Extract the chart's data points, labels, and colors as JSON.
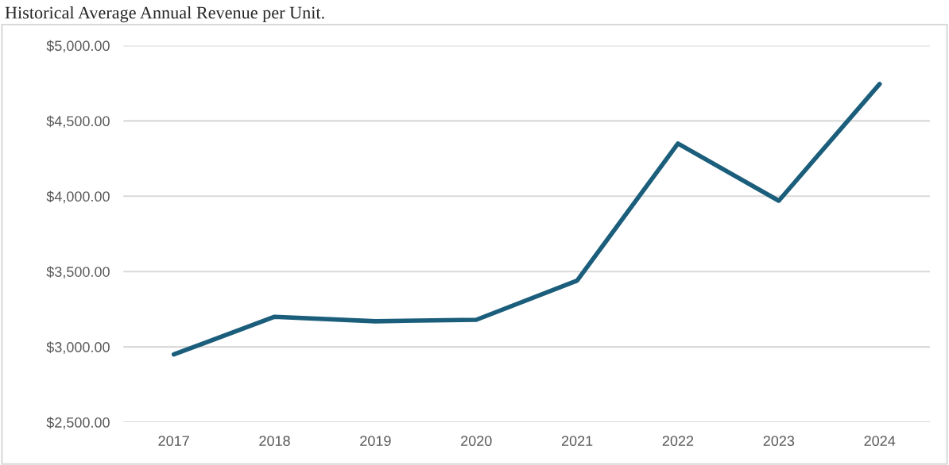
{
  "chart_data": {
    "type": "line",
    "title": "Historical Average Annual Revenue per Unit.",
    "categories": [
      "2017",
      "2018",
      "2019",
      "2020",
      "2021",
      "2022",
      "2023",
      "2024"
    ],
    "series": [
      {
        "color": "#1b5e7b",
        "values": [
          2950,
          3200,
          3170,
          3180,
          3440,
          4350,
          3970,
          4745
        ]
      }
    ],
    "ylim": [
      2500,
      5000
    ],
    "yticks": [
      {
        "value": 2500,
        "label": "$2,500.00"
      },
      {
        "value": 3000,
        "label": "$3,000.00"
      },
      {
        "value": 3500,
        "label": "$3,500.00"
      },
      {
        "value": 4000,
        "label": "$4,000.00"
      },
      {
        "value": 4500,
        "label": "$4,500.00"
      },
      {
        "value": 5000,
        "label": "$5,000.00"
      }
    ],
    "grid": "y",
    "marker": "none",
    "line_style": "solid"
  }
}
